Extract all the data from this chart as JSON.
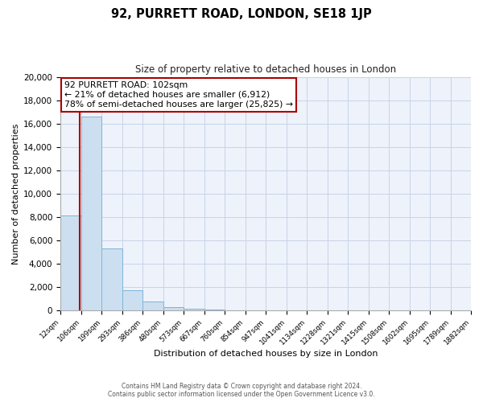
{
  "title": "92, PURRETT ROAD, LONDON, SE18 1JP",
  "subtitle": "Size of property relative to detached houses in London",
  "xlabel": "Distribution of detached houses by size in London",
  "ylabel": "Number of detached properties",
  "bin_labels": [
    "12sqm",
    "106sqm",
    "199sqm",
    "293sqm",
    "386sqm",
    "480sqm",
    "573sqm",
    "667sqm",
    "760sqm",
    "854sqm",
    "947sqm",
    "1041sqm",
    "1134sqm",
    "1228sqm",
    "1321sqm",
    "1415sqm",
    "1508sqm",
    "1602sqm",
    "1695sqm",
    "1789sqm",
    "1882sqm"
  ],
  "bar_heights": [
    8100,
    16600,
    5300,
    1750,
    750,
    300,
    175,
    100,
    0,
    0,
    0,
    0,
    0,
    0,
    0,
    0,
    0,
    0,
    0,
    0
  ],
  "bar_color": "#ccdff0",
  "bar_edge_color": "#7fb4d8",
  "property_line_color": "#aa0000",
  "annotation_title": "92 PURRETT ROAD: 102sqm",
  "annotation_line1": "← 21% of detached houses are smaller (6,912)",
  "annotation_line2": "78% of semi-detached houses are larger (25,825) →",
  "ylim": [
    0,
    20000
  ],
  "yticks": [
    0,
    2000,
    4000,
    6000,
    8000,
    10000,
    12000,
    14000,
    16000,
    18000,
    20000
  ],
  "grid_color": "#c8d4e8",
  "bg_color": "#eef2fa",
  "footer_line1": "Contains HM Land Registry data © Crown copyright and database right 2024.",
  "footer_line2": "Contains public sector information licensed under the Open Government Licence v3.0."
}
